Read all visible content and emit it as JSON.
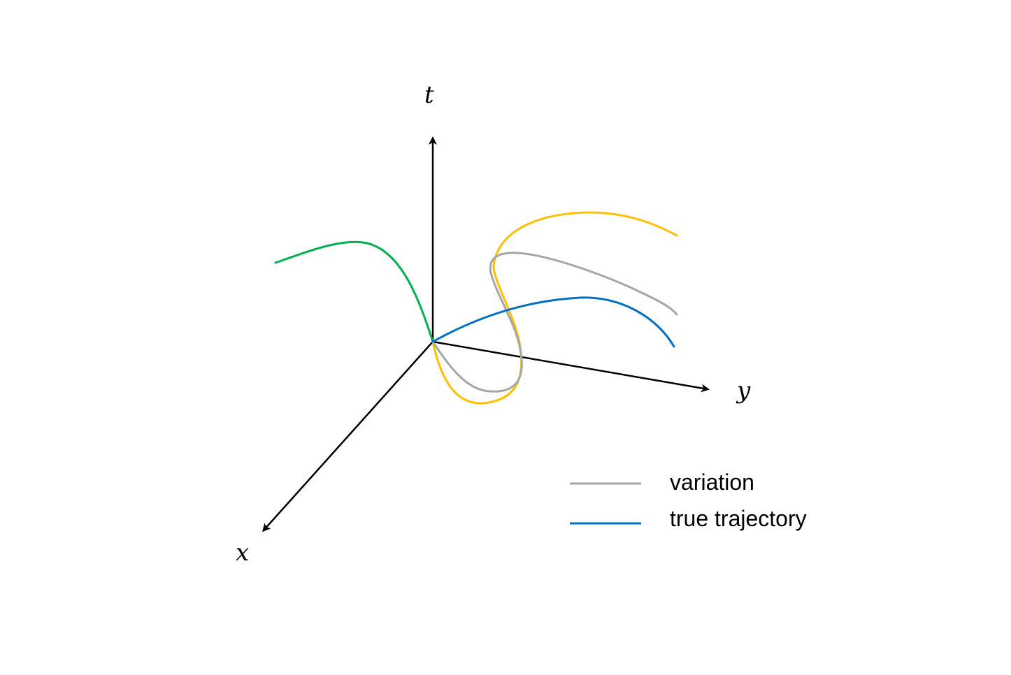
{
  "axes": {
    "t_label": "t",
    "y_label": "y",
    "x_label": "x"
  },
  "legend": {
    "items": [
      {
        "label": "variation",
        "color": "#a6a6a6"
      },
      {
        "label": "true trajectory",
        "color": "#0070c0"
      }
    ]
  },
  "curves": {
    "green_color": "#00b050",
    "yellow_color": "#ffc000",
    "gray_color": "#a6a6a6",
    "blue_color": "#0070c0"
  }
}
